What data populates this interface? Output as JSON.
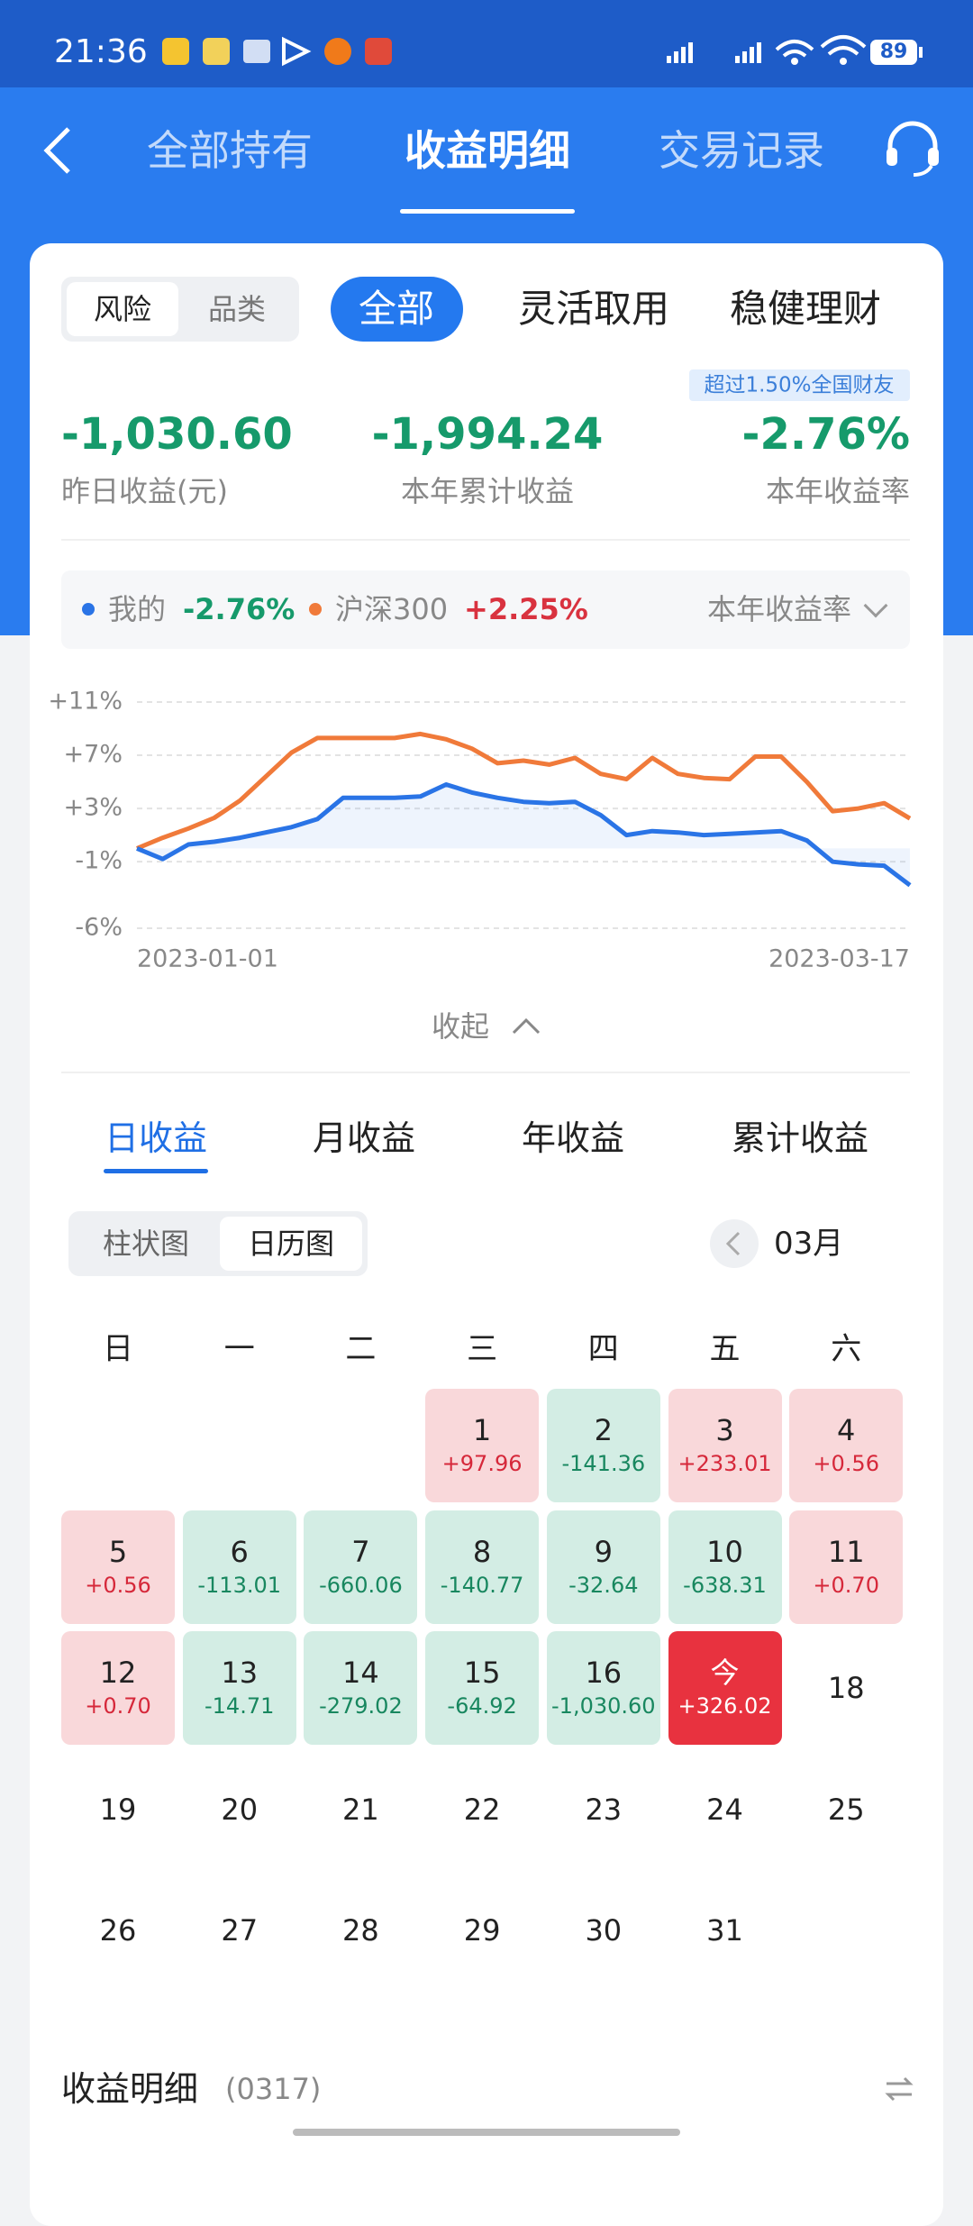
{
  "status": {
    "time": "21:36",
    "battery": "89"
  },
  "header": {
    "tabs": [
      "全部持有",
      "收益明细",
      "交易记录"
    ],
    "active": 1
  },
  "filters": {
    "segment": [
      "风险",
      "品类"
    ],
    "segment_active": 0,
    "categories": [
      "全部",
      "灵活取用",
      "稳健理财"
    ],
    "category_active": 0
  },
  "badge": "超过1.50%全国财友",
  "stats": [
    {
      "value": "-1,030.60",
      "label": "昨日收益(元)"
    },
    {
      "value": "-1,994.24",
      "label": "本年累计收益"
    },
    {
      "value": "-2.76%",
      "label": "本年收益率"
    }
  ],
  "chart_data": {
    "type": "line",
    "metric": "本年收益率",
    "legend_values": [
      "-2.76%",
      "+2.25%"
    ],
    "categories": [
      "2023-01-01",
      null,
      null,
      null,
      null,
      null,
      null,
      null,
      null,
      null,
      null,
      null,
      null,
      null,
      null,
      null,
      null,
      null,
      null,
      null,
      null,
      null,
      null,
      null,
      null,
      null,
      null,
      null,
      null,
      null,
      "2023-03-17"
    ],
    "series": [
      {
        "name": "我的",
        "color": "#2a74e6",
        "values": [
          0,
          -0.8,
          0.3,
          0.5,
          0.8,
          1.2,
          1.6,
          2.2,
          3.8,
          3.8,
          3.8,
          3.9,
          4.8,
          4.2,
          3.8,
          3.5,
          3.4,
          3.5,
          2.5,
          1.0,
          1.3,
          1.2,
          1.0,
          1.1,
          1.2,
          1.3,
          0.6,
          -1.0,
          -1.2,
          -1.3,
          -2.76
        ]
      },
      {
        "name": "沪深300",
        "color": "#f07a3a",
        "values": [
          0,
          0.8,
          1.5,
          2.3,
          3.6,
          5.4,
          7.2,
          8.3,
          8.3,
          8.3,
          8.3,
          8.6,
          8.2,
          7.5,
          6.4,
          6.6,
          6.3,
          6.8,
          5.6,
          5.2,
          6.8,
          5.6,
          5.3,
          5.2,
          6.9,
          6.9,
          5.0,
          2.8,
          3.0,
          3.4,
          2.25
        ]
      }
    ],
    "ylim": [
      -6,
      11
    ],
    "yticks": [
      {
        "value": 11,
        "label": "+11%"
      },
      {
        "value": 7,
        "label": "+7%"
      },
      {
        "value": 3,
        "label": "+3%"
      },
      {
        "value": -1,
        "label": "-1%"
      },
      {
        "value": -6,
        "label": "-6%"
      }
    ],
    "grid": true
  },
  "collapse": "收起",
  "period_tabs": [
    "日收益",
    "月收益",
    "年收益",
    "累计收益"
  ],
  "period_active": 0,
  "view_toggle": [
    "柱状图",
    "日历图"
  ],
  "view_active": 1,
  "month": "03月",
  "calendar": {
    "weekdays": [
      "日",
      "一",
      "二",
      "三",
      "四",
      "五",
      "六"
    ],
    "days": [
      null,
      null,
      null,
      {
        "day": "1",
        "value": "+97.96"
      },
      {
        "day": "2",
        "value": "-141.36"
      },
      {
        "day": "3",
        "value": "+233.01"
      },
      {
        "day": "4",
        "value": "+0.56"
      },
      {
        "day": "5",
        "value": "+0.56"
      },
      {
        "day": "6",
        "value": "-113.01"
      },
      {
        "day": "7",
        "value": "-660.06"
      },
      {
        "day": "8",
        "value": "-140.77"
      },
      {
        "day": "9",
        "value": "-32.64"
      },
      {
        "day": "10",
        "value": "-638.31"
      },
      {
        "day": "11",
        "value": "+0.70"
      },
      {
        "day": "12",
        "value": "+0.70"
      },
      {
        "day": "13",
        "value": "-14.71"
      },
      {
        "day": "14",
        "value": "-279.02"
      },
      {
        "day": "15",
        "value": "-64.92"
      },
      {
        "day": "16",
        "value": "-1,030.60"
      },
      {
        "day": "今",
        "value": "+326.02"
      },
      {
        "day": "18"
      },
      {
        "day": "19"
      },
      {
        "day": "20"
      },
      {
        "day": "21"
      },
      {
        "day": "22"
      },
      {
        "day": "23"
      },
      {
        "day": "24"
      },
      {
        "day": "25"
      },
      {
        "day": "26"
      },
      {
        "day": "27"
      },
      {
        "day": "28"
      },
      {
        "day": "29"
      },
      {
        "day": "30"
      },
      {
        "day": "31"
      }
    ]
  },
  "detail": {
    "title": "收益明细",
    "date": "(0317)"
  }
}
